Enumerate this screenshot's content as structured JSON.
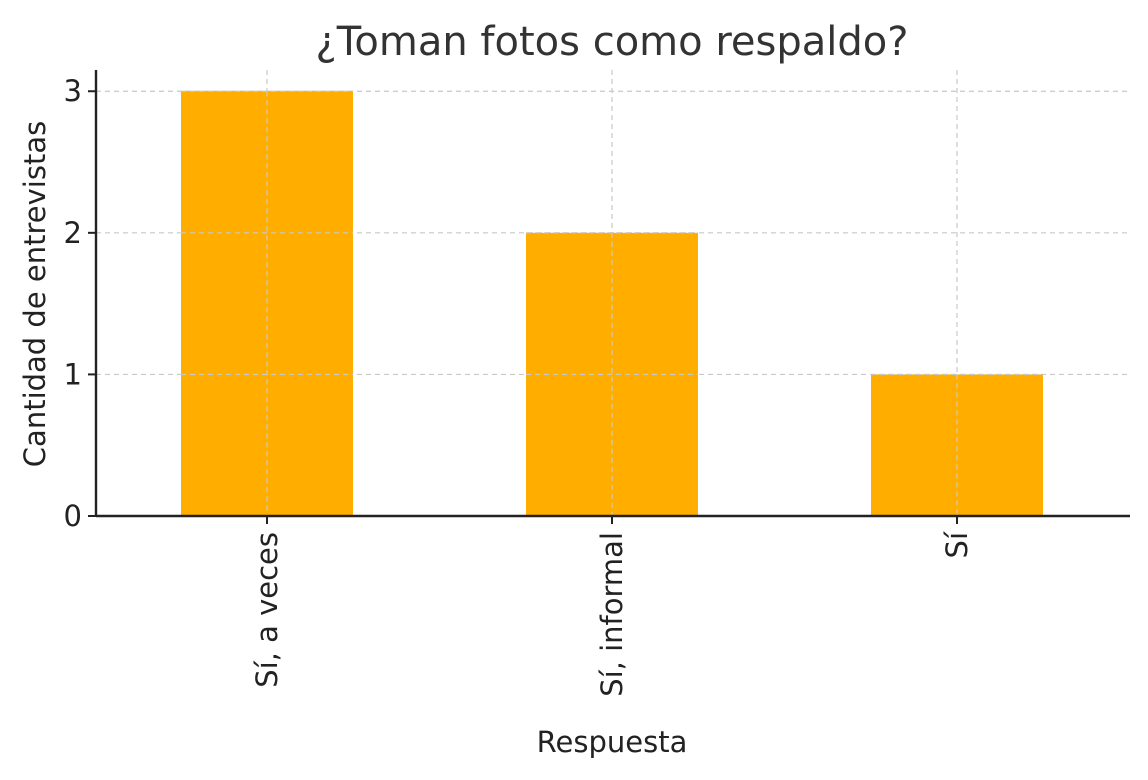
{
  "chart_data": {
    "type": "bar",
    "title": "¿Toman fotos como respaldo?",
    "xlabel": "Respuesta",
    "ylabel": "Cantidad de entrevistas",
    "categories": [
      "Sí, a veces",
      "Sí, informal",
      "Sí"
    ],
    "values": [
      3,
      2,
      1
    ],
    "ylim": [
      0,
      3.15
    ],
    "yticks": [
      0,
      1,
      2,
      3
    ],
    "grid": true,
    "legend": "none",
    "bar_color": "#FFAE00"
  }
}
